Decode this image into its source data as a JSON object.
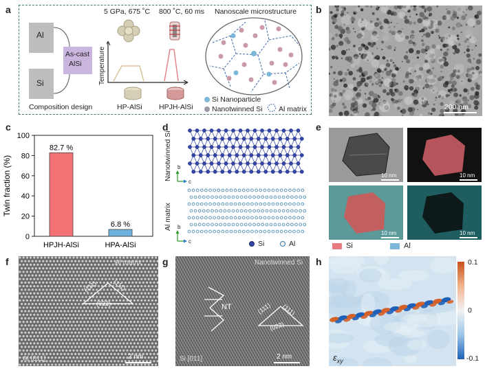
{
  "panels": {
    "a": {
      "label": "a",
      "al": "Al",
      "si": "Si",
      "ascast": [
        "As-cast",
        "AlSi"
      ],
      "composition": "Composition design",
      "cond1": "5 GPa, 675 ˚C",
      "cond2": "800 ˚C, 60 ms",
      "temperature": "Temperature",
      "hp": "HP-AlSi",
      "hpjh": "HPJH-AlSi",
      "nanoscale": "Nanoscale microstructure",
      "legend_si": "Si Nanoparticle",
      "legend_nt": "Nanotwinned Si",
      "legend_al": "Al matrix",
      "colors": {
        "pink": "#c99aa8",
        "blue": "#7cb6d8",
        "gray": "#9b9ba8",
        "purple": "#c9b5dd",
        "box": "#bdbdbd"
      }
    },
    "b": {
      "label": "b",
      "scale": "200 nm"
    },
    "c": {
      "label": "c",
      "ylabel": "Twin fraction (%)"
    },
    "d": {
      "label": "d",
      "nt_label": "Nanotwinned Si",
      "al_label": "Al matrix",
      "leg_si": "Si",
      "leg_al": "Al",
      "axis_b": "b",
      "axis_c": "c"
    },
    "e": {
      "label": "e",
      "scale": "10 nm",
      "leg_si": "Si",
      "leg_al": "Al"
    },
    "f": {
      "label": "f",
      "title": "Al matrix",
      "zone": "Al [011]",
      "scale": "2 nm",
      "i1": "(111)",
      "i2": "(111)",
      "i3": "(022)"
    },
    "g": {
      "label": "g",
      "title": "Nanotwinned Si",
      "zone": "Si [011]",
      "scale": "2 nm",
      "nt": "NT",
      "i1": "(111)",
      "i2": "(111)",
      "i3": "(022)"
    },
    "h": {
      "label": "h",
      "max": "0.1",
      "zero": "0",
      "min": "-0.1",
      "eps": "ε",
      "eps_sub": "xy"
    }
  },
  "chart_data": {
    "type": "bar",
    "categories": [
      "HPJH-AlSi",
      "HPA-AlSi"
    ],
    "values": [
      82.7,
      6.8
    ],
    "data_labels": [
      "82.7 %",
      "6.8 %"
    ],
    "colors": [
      "#f47174",
      "#6fb1dd"
    ],
    "ylabel": "Twin fraction (%)",
    "ylim": [
      0,
      100
    ],
    "yticks": [
      0,
      20,
      40,
      60,
      80,
      100
    ]
  }
}
